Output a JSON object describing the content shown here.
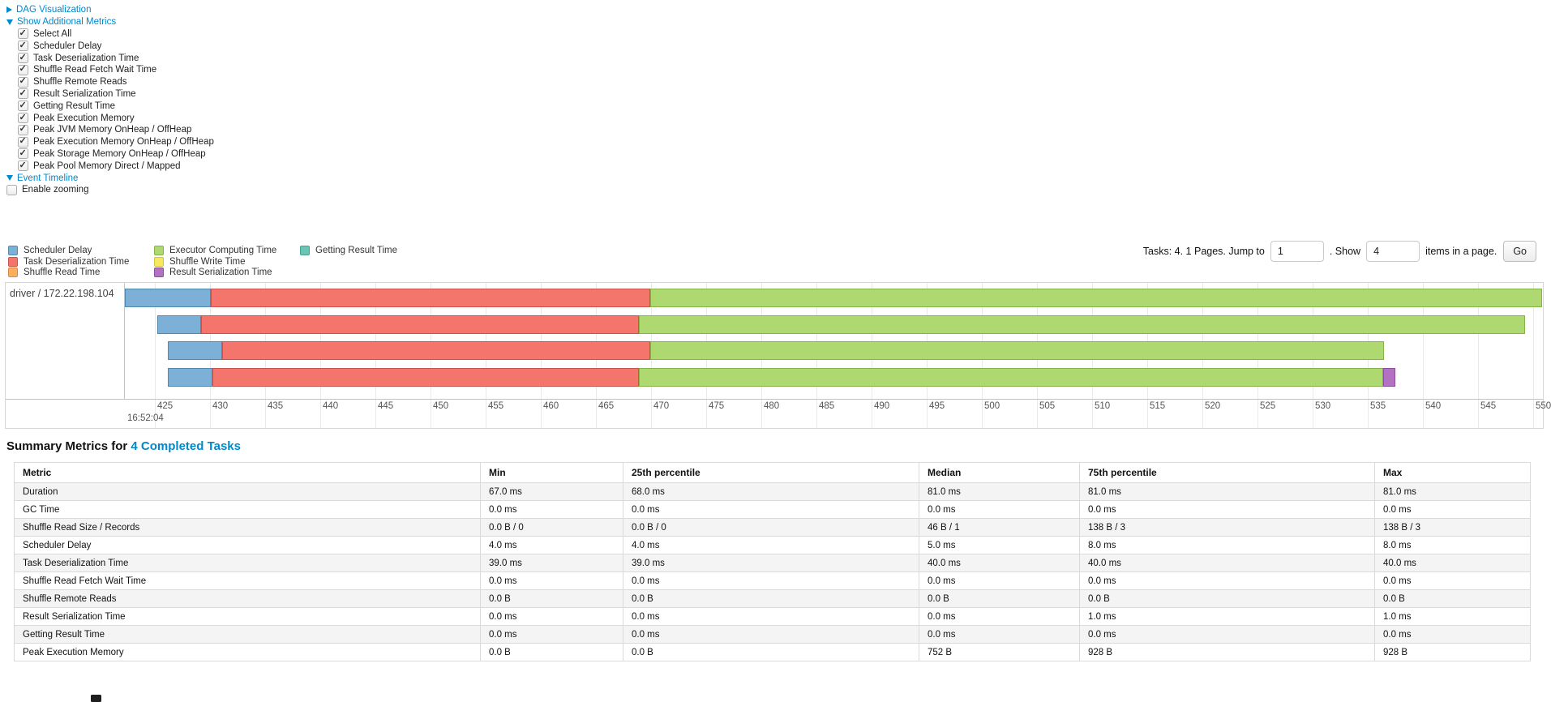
{
  "controls": {
    "dag_label": "DAG Visualization",
    "metrics_toggle_label": "Show Additional Metrics",
    "metric_checkboxes": [
      {
        "label": "Select All",
        "checked": true
      },
      {
        "label": "Scheduler Delay",
        "checked": true
      },
      {
        "label": "Task Deserialization Time",
        "checked": true
      },
      {
        "label": "Shuffle Read Fetch Wait Time",
        "checked": true
      },
      {
        "label": "Shuffle Remote Reads",
        "checked": true
      },
      {
        "label": "Result Serialization Time",
        "checked": true
      },
      {
        "label": "Getting Result Time",
        "checked": true
      },
      {
        "label": "Peak Execution Memory",
        "checked": true
      },
      {
        "label": "Peak JVM Memory OnHeap / OffHeap",
        "checked": true
      },
      {
        "label": "Peak Execution Memory OnHeap / OffHeap",
        "checked": true
      },
      {
        "label": "Peak Storage Memory OnHeap / OffHeap",
        "checked": true
      },
      {
        "label": "Peak Pool Memory Direct / Mapped",
        "checked": true
      }
    ],
    "event_timeline_label": "Event Timeline",
    "enable_zooming": {
      "label": "Enable zooming",
      "checked": false
    }
  },
  "legend": {
    "items": [
      {
        "label": "Scheduler Delay",
        "kind": "scheduler_delay",
        "col": 0,
        "row": 0
      },
      {
        "label": "Task Deserialization Time",
        "kind": "task_deserialization",
        "col": 0,
        "row": 1
      },
      {
        "label": "Shuffle Read Time",
        "kind": "shuffle_read",
        "col": 0,
        "row": 2
      },
      {
        "label": "Executor Computing Time",
        "kind": "executor_computing",
        "col": 1,
        "row": 0
      },
      {
        "label": "Shuffle Write Time",
        "kind": "shuffle_write",
        "col": 1,
        "row": 1
      },
      {
        "label": "Result Serialization Time",
        "kind": "result_serialization",
        "col": 1,
        "row": 2
      },
      {
        "label": "Getting Result Time",
        "kind": "getting_result",
        "col": 2,
        "row": 0
      }
    ]
  },
  "pagination": {
    "tasks_text": "Tasks: 4. 1 Pages. Jump to",
    "jump_value": "1",
    "show_label": ". Show",
    "show_value": "4",
    "items_text": "items in a page.",
    "go_label": "Go"
  },
  "chart_data": {
    "type": "timeline",
    "group_label": "driver / 172.22.198.104",
    "axis": {
      "unit": "ms within second 16:52:04",
      "major_label": "16:52:04",
      "ticks": [
        425,
        430,
        435,
        440,
        445,
        450,
        455,
        460,
        465,
        470,
        475,
        480,
        485,
        490,
        495,
        500,
        505,
        510,
        515,
        520,
        525,
        530,
        535,
        540,
        545,
        550
      ],
      "visible_range": [
        422.2,
        550.5
      ]
    },
    "colors": {
      "scheduler_delay": {
        "fill": "#7CB0D6",
        "border": "#5089B0"
      },
      "task_deserialization": {
        "fill": "#F4756C",
        "border": "#C9534C"
      },
      "shuffle_read": {
        "fill": "#FCAD5F",
        "border": "#DB8B3B"
      },
      "executor_computing": {
        "fill": "#ADD970",
        "border": "#84B446"
      },
      "shuffle_write": {
        "fill": "#F6E962",
        "border": "#D3C43C"
      },
      "result_serialization": {
        "fill": "#B271C1",
        "border": "#8E4C9E"
      },
      "getting_result": {
        "fill": "#6BC4B4",
        "border": "#41A18F"
      }
    },
    "tasks": [
      {
        "segments": [
          {
            "kind": "scheduler_delay",
            "start": 422.1,
            "end": 430.1
          },
          {
            "kind": "task_deserialization",
            "start": 430.1,
            "end": 469.9
          },
          {
            "kind": "executor_computing",
            "start": 469.9,
            "end": 550.8
          }
        ]
      },
      {
        "segments": [
          {
            "kind": "scheduler_delay",
            "start": 425.2,
            "end": 429.2
          },
          {
            "kind": "task_deserialization",
            "start": 429.2,
            "end": 468.9
          },
          {
            "kind": "executor_computing",
            "start": 468.9,
            "end": 549.3
          }
        ]
      },
      {
        "segments": [
          {
            "kind": "scheduler_delay",
            "start": 426.2,
            "end": 431.1
          },
          {
            "kind": "task_deserialization",
            "start": 431.1,
            "end": 469.9
          },
          {
            "kind": "executor_computing",
            "start": 469.9,
            "end": 536.5
          }
        ]
      },
      {
        "segments": [
          {
            "kind": "scheduler_delay",
            "start": 426.2,
            "end": 430.2
          },
          {
            "kind": "task_deserialization",
            "start": 430.2,
            "end": 468.9
          },
          {
            "kind": "executor_computing",
            "start": 468.9,
            "end": 536.4
          },
          {
            "kind": "result_serialization",
            "start": 536.4,
            "end": 537.5
          }
        ]
      }
    ]
  },
  "summary": {
    "title_prefix": "Summary Metrics for ",
    "title_link": "4 Completed Tasks",
    "columns": [
      "Metric",
      "Min",
      "25th percentile",
      "Median",
      "75th percentile",
      "Max"
    ],
    "rows": [
      {
        "metric": "Duration",
        "values": [
          "67.0 ms",
          "68.0 ms",
          "81.0 ms",
          "81.0 ms",
          "81.0 ms"
        ]
      },
      {
        "metric": "GC Time",
        "values": [
          "0.0 ms",
          "0.0 ms",
          "0.0 ms",
          "0.0 ms",
          "0.0 ms"
        ]
      },
      {
        "metric": "Shuffle Read Size / Records",
        "values": [
          "0.0 B / 0",
          "0.0 B / 0",
          "46 B / 1",
          "138 B / 3",
          "138 B / 3"
        ]
      },
      {
        "metric": "Scheduler Delay",
        "values": [
          "4.0 ms",
          "4.0 ms",
          "5.0 ms",
          "8.0 ms",
          "8.0 ms"
        ]
      },
      {
        "metric": "Task Deserialization Time",
        "values": [
          "39.0 ms",
          "39.0 ms",
          "40.0 ms",
          "40.0 ms",
          "40.0 ms"
        ]
      },
      {
        "metric": "Shuffle Read Fetch Wait Time",
        "values": [
          "0.0 ms",
          "0.0 ms",
          "0.0 ms",
          "0.0 ms",
          "0.0 ms"
        ]
      },
      {
        "metric": "Shuffle Remote Reads",
        "values": [
          "0.0 B",
          "0.0 B",
          "0.0 B",
          "0.0 B",
          "0.0 B"
        ]
      },
      {
        "metric": "Result Serialization Time",
        "values": [
          "0.0 ms",
          "0.0 ms",
          "0.0 ms",
          "1.0 ms",
          "1.0 ms"
        ]
      },
      {
        "metric": "Getting Result Time",
        "values": [
          "0.0 ms",
          "0.0 ms",
          "0.0 ms",
          "0.0 ms",
          "0.0 ms"
        ]
      },
      {
        "metric": "Peak Execution Memory",
        "values": [
          "0.0 B",
          "0.0 B",
          "752 B",
          "928 B",
          "928 B"
        ]
      }
    ]
  }
}
